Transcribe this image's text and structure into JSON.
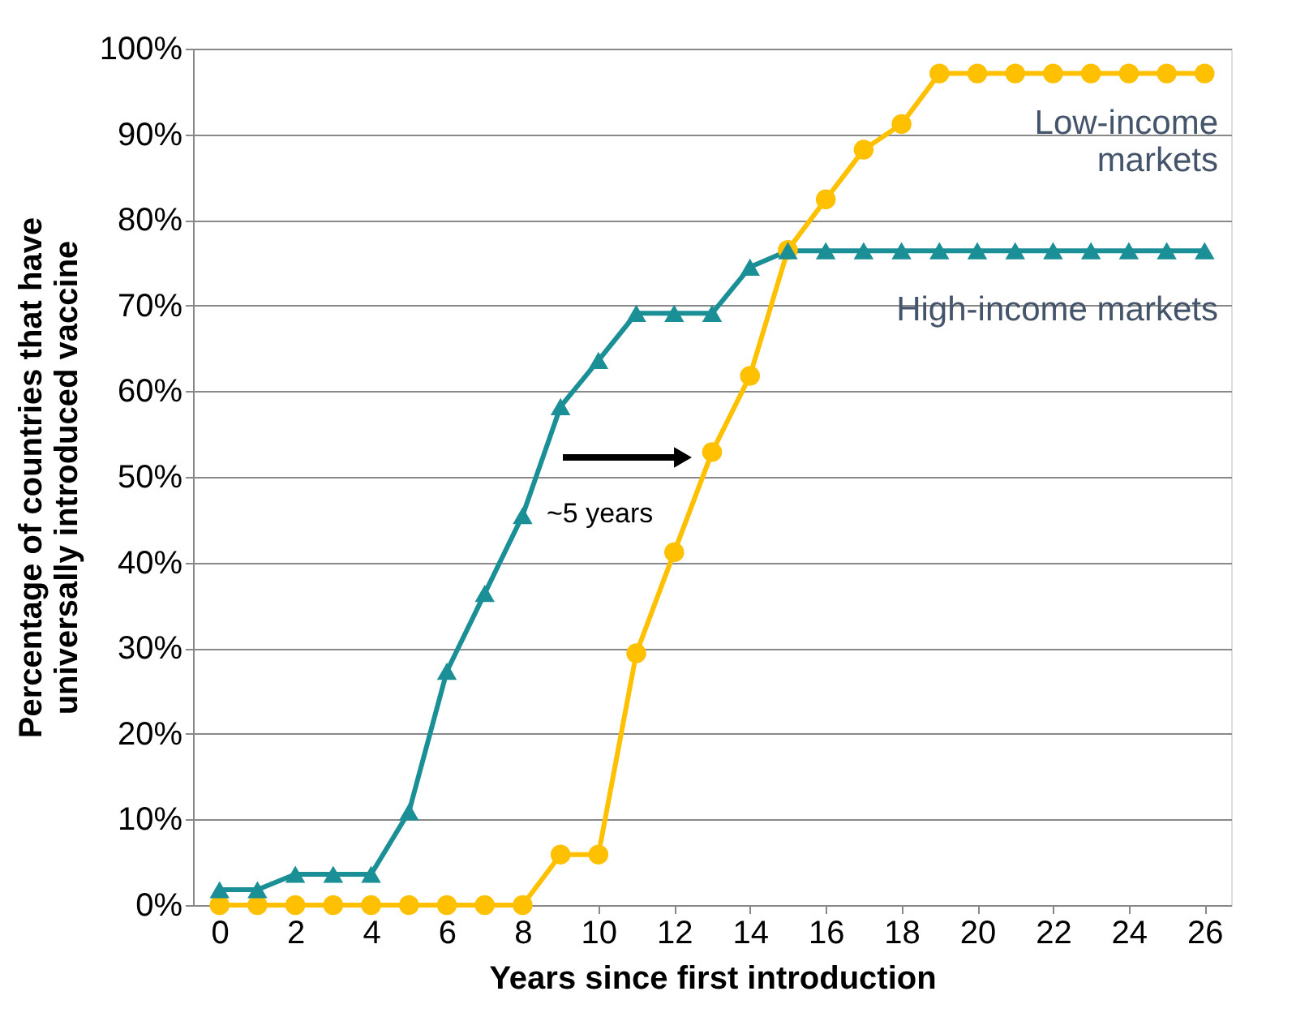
{
  "chart_data": {
    "type": "line",
    "xlabel": "Years since first introduction",
    "ylabel": "Percentage of countries that have\nuniversally introduced vaccine",
    "x": [
      0,
      1,
      2,
      3,
      4,
      5,
      6,
      7,
      8,
      9,
      10,
      11,
      12,
      13,
      14,
      15,
      16,
      17,
      18,
      19,
      20,
      21,
      22,
      23,
      24,
      25,
      26
    ],
    "series": [
      {
        "name": "Low-income markets",
        "color": "#ffc000",
        "marker": "circle",
        "values": [
          0,
          0,
          0,
          0,
          0,
          0,
          0,
          0,
          0,
          5.9,
          5.9,
          29.4,
          41.2,
          52.9,
          61.8,
          76.5,
          82.4,
          88.2,
          91.2,
          97.1,
          97.1,
          97.1,
          97.1,
          97.1,
          97.1,
          97.1,
          97.1
        ]
      },
      {
        "name": "High-income markets",
        "color": "#1b8f96",
        "marker": "triangle",
        "values": [
          1.8,
          1.8,
          3.6,
          3.6,
          3.6,
          10.9,
          27.3,
          36.4,
          45.5,
          58.2,
          63.6,
          69.1,
          69.1,
          69.1,
          74.5,
          76.4,
          76.4,
          76.4,
          76.4,
          76.4,
          76.4,
          76.4,
          76.4,
          76.4,
          76.4,
          76.4,
          76.4
        ]
      }
    ],
    "annotations": [
      "~5 years"
    ],
    "xlim": [
      -0.7,
      26.7
    ],
    "xticks": [
      0,
      2,
      4,
      6,
      8,
      10,
      12,
      14,
      16,
      18,
      20,
      22,
      24,
      26
    ],
    "ylim": [
      0,
      100
    ],
    "yticks": [
      {
        "value": 0,
        "label": "0%"
      },
      {
        "value": 10,
        "label": "10%"
      },
      {
        "value": 20,
        "label": "20%"
      },
      {
        "value": 30,
        "label": "30%"
      },
      {
        "value": 40,
        "label": "40%"
      },
      {
        "value": 50,
        "label": "50%"
      },
      {
        "value": 60,
        "label": "60%"
      },
      {
        "value": 70,
        "label": "70%"
      },
      {
        "value": 80,
        "label": "80%"
      },
      {
        "value": 90,
        "label": "90%"
      },
      {
        "value": 100,
        "label": "100%"
      }
    ],
    "grid": "y",
    "legend": false,
    "line_style": "solid"
  }
}
